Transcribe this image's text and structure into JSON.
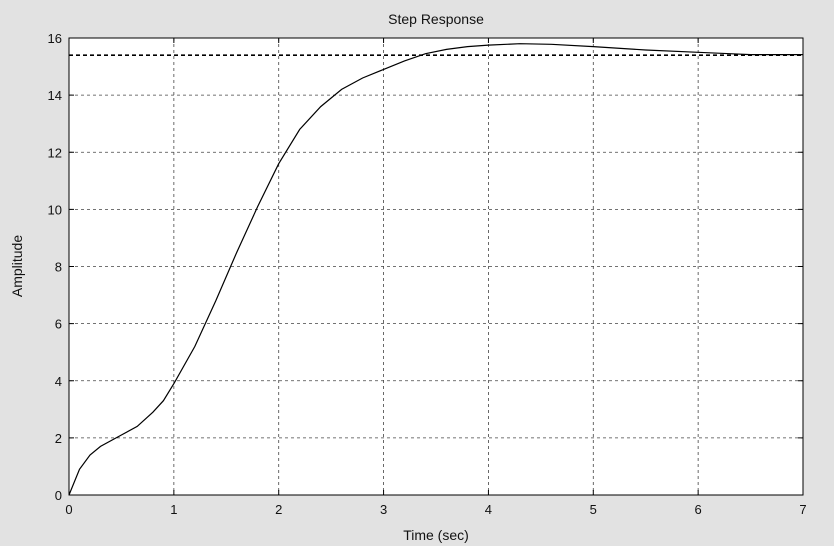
{
  "chart_data": {
    "type": "line",
    "title": "Step Response",
    "xlabel": "Time (sec)",
    "ylabel": "Amplitude",
    "xlim": [
      0,
      7
    ],
    "ylim": [
      0,
      16
    ],
    "xticks": [
      0,
      1,
      2,
      3,
      4,
      5,
      6,
      7
    ],
    "yticks": [
      0,
      2,
      4,
      6,
      8,
      10,
      12,
      14,
      16
    ],
    "xtick_labels": [
      "0",
      "1",
      "2",
      "3",
      "4",
      "5",
      "6",
      "7"
    ],
    "ytick_labels": [
      "0",
      "2",
      "4",
      "6",
      "8",
      "10",
      "12",
      "14",
      "16"
    ],
    "grid": true,
    "reference_line": {
      "y": 15.4,
      "style": "dashed"
    },
    "series": [
      {
        "x": [
          0,
          0.1,
          0.2,
          0.3,
          0.5,
          0.65,
          0.8,
          0.9,
          1.0,
          1.2,
          1.4,
          1.6,
          1.8,
          2.0,
          2.2,
          2.4,
          2.6,
          2.8,
          3.0,
          3.2,
          3.4,
          3.6,
          3.8,
          4.0,
          4.3,
          4.6,
          5.0,
          5.5,
          6.0,
          6.3,
          6.5,
          7.0
        ],
        "y": [
          0,
          0.9,
          1.4,
          1.7,
          2.1,
          2.4,
          2.9,
          3.3,
          3.9,
          5.2,
          6.8,
          8.5,
          10.1,
          11.6,
          12.8,
          13.6,
          14.2,
          14.6,
          14.9,
          15.2,
          15.45,
          15.6,
          15.7,
          15.75,
          15.8,
          15.78,
          15.7,
          15.58,
          15.5,
          15.45,
          15.42,
          15.42
        ]
      }
    ]
  }
}
